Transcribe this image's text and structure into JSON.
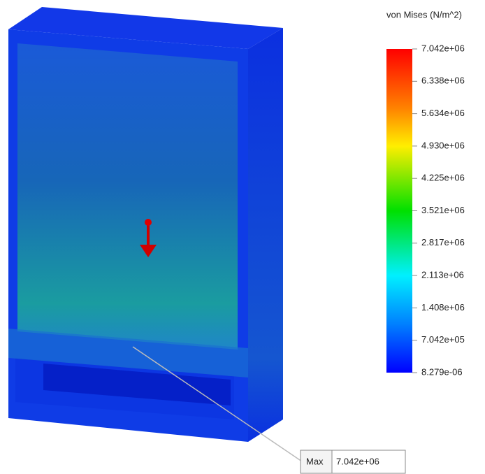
{
  "legend": {
    "title": "von Mises (N/m^2)",
    "labels": [
      "7.042e+06",
      "6.338e+06",
      "5.634e+06",
      "4.930e+06",
      "4.225e+06",
      "3.521e+06",
      "2.817e+06",
      "2.113e+06",
      "1.408e+06",
      "7.042e+05",
      "8.279e-06"
    ]
  },
  "probe": {
    "label": "Max",
    "value": "7.042e+06"
  }
}
